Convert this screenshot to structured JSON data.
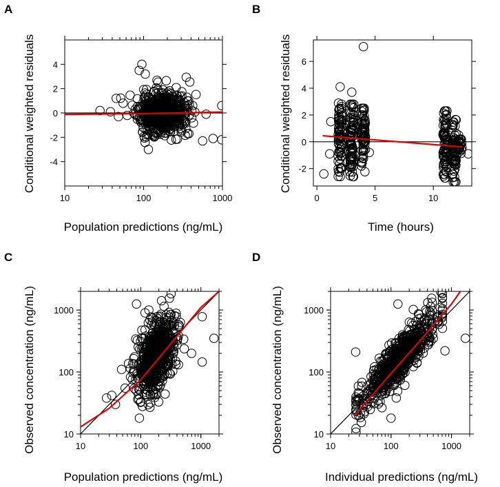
{
  "chart_data": [
    {
      "id": "A",
      "type": "scatter",
      "panel_label": "A",
      "xlabel": "Population predictions (ng/mL)",
      "ylabel": "Conditional weighted residuals",
      "xscale": "log",
      "yscale": "linear",
      "xlim": [
        10,
        1000
      ],
      "ylim": [
        -6,
        6
      ],
      "xticks": [
        10,
        100,
        1000
      ],
      "xtick_labels": [
        "10",
        "100",
        "1000"
      ],
      "yticks": [
        -4,
        -2,
        0,
        2,
        4
      ],
      "ytick_labels": [
        "-4",
        "-2",
        "0",
        "2",
        "4"
      ],
      "reference_line": {
        "type": "horizontal",
        "y": 0,
        "color": "#000000"
      },
      "trend_line": {
        "color": "#e00000",
        "x": [
          10,
          100,
          1000
        ],
        "y": [
          -0.12,
          -0.05,
          0.08
        ]
      },
      "points": {
        "cluster": {
          "n": 650,
          "x_log_center": 2.23,
          "x_log_sd": 0.15,
          "y_center": 0.0,
          "y_sd": 0.85
        },
        "outliers": [
          {
            "x": 28,
            "y": 0.2
          },
          {
            "x": 38,
            "y": 0.1
          },
          {
            "x": 45,
            "y": 1.2
          },
          {
            "x": 48,
            "y": -0.3
          },
          {
            "x": 55,
            "y": 0.8
          },
          {
            "x": 62,
            "y": -0.2
          },
          {
            "x": 95,
            "y": 4.0
          },
          {
            "x": 88,
            "y": 3.5
          },
          {
            "x": 105,
            "y": 3.2
          },
          {
            "x": 560,
            "y": -2.3
          },
          {
            "x": 760,
            "y": -2.1
          },
          {
            "x": 980,
            "y": 0.6
          },
          {
            "x": 980,
            "y": -2.2
          },
          {
            "x": 420,
            "y": 0.6
          },
          {
            "x": 620,
            "y": -0.1
          },
          {
            "x": 115,
            "y": -3.0
          }
        ]
      },
      "seed": 11
    },
    {
      "id": "B",
      "type": "scatter",
      "panel_label": "B",
      "xlabel": "Time (hours)",
      "ylabel": "Conditional weighted residuals",
      "xscale": "linear",
      "yscale": "linear",
      "xlim": [
        -0.3,
        13.3
      ],
      "ylim": [
        -3.3,
        7.6
      ],
      "xticks": [
        0,
        5,
        10
      ],
      "xtick_labels": [
        "0",
        "5",
        "10"
      ],
      "yticks": [
        -2,
        0,
        2,
        4,
        6
      ],
      "ytick_labels": [
        "-2",
        "0",
        "2",
        "4",
        "6"
      ],
      "reference_line": {
        "type": "horizontal",
        "y": 0,
        "color": "#000000"
      },
      "trend_line": {
        "color": "#e00000",
        "x": [
          0.5,
          12.5
        ],
        "y": [
          0.45,
          -0.38
        ]
      },
      "points": {
        "columns": [
          {
            "x": 2.0,
            "n": 80,
            "y_min": -2.6,
            "y_max": 3.0
          },
          {
            "x": 3.0,
            "n": 90,
            "y_min": -2.6,
            "y_max": 2.8
          },
          {
            "x": 4.0,
            "n": 75,
            "y_min": -2.3,
            "y_max": 2.5
          },
          {
            "x": 11.0,
            "n": 85,
            "y_min": -2.7,
            "y_max": 2.3
          },
          {
            "x": 11.8,
            "n": 70,
            "y_min": -3.0,
            "y_max": 1.7
          },
          {
            "x": 12.3,
            "n": 25,
            "y_min": -1.0,
            "y_max": 0.5
          }
        ],
        "outliers": [
          {
            "x": 4.0,
            "y": 7.1
          },
          {
            "x": 2.0,
            "y": 4.1
          },
          {
            "x": 3.0,
            "y": 3.7
          },
          {
            "x": 1.2,
            "y": 1.5
          },
          {
            "x": 0.6,
            "y": -2.4
          },
          {
            "x": 1.1,
            "y": -0.9
          },
          {
            "x": 4.5,
            "y": -0.8
          },
          {
            "x": 13.0,
            "y": -0.9
          }
        ]
      },
      "seed": 23
    },
    {
      "id": "C",
      "type": "scatter",
      "panel_label": "C",
      "xlabel": "Population predictions (ng/mL)",
      "ylabel": "Observed concentration (ng/mL)",
      "xscale": "log",
      "yscale": "log",
      "xlim": [
        10,
        2000
      ],
      "ylim": [
        10,
        2000
      ],
      "xticks": [
        10,
        100,
        1000
      ],
      "xtick_labels": [
        "10",
        "100",
        "1000"
      ],
      "yticks": [
        10,
        100,
        1000
      ],
      "ytick_labels": [
        "10",
        "100",
        "1000"
      ],
      "reference_line": {
        "type": "identity",
        "color": "#000000"
      },
      "trend_line": {
        "color": "#e00000",
        "x": [
          10,
          30,
          100,
          300,
          1000,
          2000
        ],
        "y": [
          13,
          26,
          75,
          270,
          1100,
          2000
        ]
      },
      "points": {
        "cluster": {
          "n": 650,
          "x_log_center": 2.26,
          "x_log_sd": 0.16,
          "y_log_center": 2.28,
          "y_log_sd": 0.32
        },
        "outliers": [
          {
            "x": 1650,
            "y": 350
          },
          {
            "x": 1050,
            "y": 780
          },
          {
            "x": 1050,
            "y": 145
          },
          {
            "x": 27,
            "y": 38
          },
          {
            "x": 33,
            "y": 42
          },
          {
            "x": 38,
            "y": 30
          },
          {
            "x": 48,
            "y": 110
          },
          {
            "x": 55,
            "y": 55
          },
          {
            "x": 85,
            "y": 1250
          },
          {
            "x": 300,
            "y": 1550
          },
          {
            "x": 700,
            "y": 200
          },
          {
            "x": 95,
            "y": 18
          }
        ]
      },
      "seed": 37
    },
    {
      "id": "D",
      "type": "scatter",
      "panel_label": "D",
      "xlabel": "Individual predictions (ng/mL)",
      "ylabel": "Observed concentration (ng/mL)",
      "xscale": "log",
      "yscale": "log",
      "xlim": [
        10,
        2000
      ],
      "ylim": [
        10,
        2000
      ],
      "xticks": [
        10,
        100,
        1000
      ],
      "xtick_labels": [
        "10",
        "100",
        "1000"
      ],
      "yticks": [
        10,
        100,
        1000
      ],
      "ytick_labels": [
        "10",
        "100",
        "1000"
      ],
      "reference_line": {
        "type": "identity",
        "color": "#000000"
      },
      "trend_line": {
        "color": "#e00000",
        "x": [
          25,
          100,
          300,
          1000,
          1400
        ],
        "y": [
          20,
          95,
          320,
          1250,
          2000
        ]
      },
      "points": {
        "diagonal": {
          "n": 650,
          "x_log_min": 1.42,
          "x_log_max": 2.85,
          "slope": 1.05,
          "intercept": -0.03,
          "y_log_sd": 0.17
        },
        "outliers": [
          {
            "x": 1700,
            "y": 350
          },
          {
            "x": 26,
            "y": 210
          },
          {
            "x": 130,
            "y": 1250
          },
          {
            "x": 470,
            "y": 1550
          },
          {
            "x": 780,
            "y": 220
          },
          {
            "x": 40,
            "y": 30
          },
          {
            "x": 100,
            "y": 18
          },
          {
            "x": 650,
            "y": 1100
          }
        ]
      },
      "seed": 53
    }
  ]
}
